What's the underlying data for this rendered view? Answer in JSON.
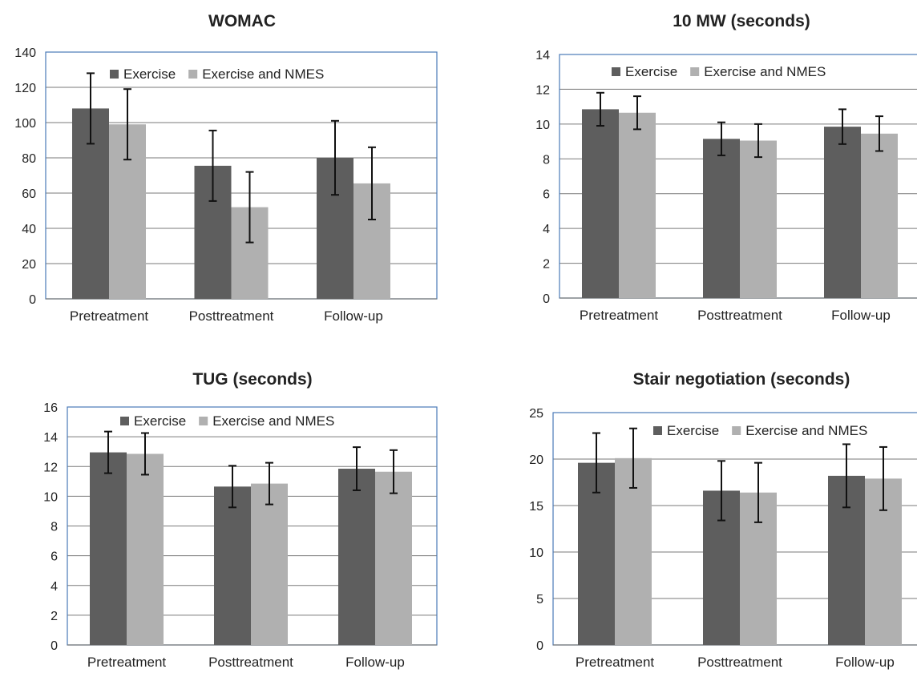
{
  "colors": {
    "exercise": "#5e5e5e",
    "exercise_nmes": "#b0b0b0",
    "frame": "#4a7ab7",
    "grid": "#7a7a7a",
    "error_bar": "#111111"
  },
  "chart_data": [
    {
      "type": "bar",
      "title": "WOMAC",
      "categories": [
        "Pretreatment",
        "Posttreatment",
        "Follow-up"
      ],
      "series": [
        {
          "name": "Exercise",
          "values": [
            108,
            75.5,
            80
          ],
          "error": [
            20,
            20,
            21
          ]
        },
        {
          "name": "Exercise and NMES",
          "values": [
            99,
            52,
            65.5
          ],
          "error": [
            20,
            20,
            20.5
          ]
        }
      ],
      "ylim": [
        0,
        140
      ],
      "yticks": [
        0,
        20,
        40,
        60,
        80,
        100,
        120,
        140
      ],
      "grid": true,
      "legend": "top-center"
    },
    {
      "type": "bar",
      "title": "10 MW (seconds)",
      "categories": [
        "Pretreatment",
        "Posttreatment",
        "Follow-up"
      ],
      "series": [
        {
          "name": "Exercise",
          "values": [
            10.85,
            9.15,
            9.85
          ],
          "error": [
            0.95,
            0.95,
            1.0
          ]
        },
        {
          "name": "Exercise and NMES",
          "values": [
            10.65,
            9.05,
            9.45
          ],
          "error": [
            0.95,
            0.95,
            1.0
          ]
        }
      ],
      "ylim": [
        0,
        14
      ],
      "yticks": [
        0,
        2,
        4,
        6,
        8,
        10,
        12,
        14
      ],
      "grid": true,
      "legend": "top-center"
    },
    {
      "type": "bar",
      "title": "TUG (seconds)",
      "categories": [
        "Pretreatment",
        "Posttreatment",
        "Follow-up"
      ],
      "series": [
        {
          "name": "Exercise",
          "values": [
            12.95,
            10.65,
            11.85
          ],
          "error": [
            1.4,
            1.4,
            1.45
          ]
        },
        {
          "name": "Exercise and NMES",
          "values": [
            12.85,
            10.85,
            11.65
          ],
          "error": [
            1.4,
            1.4,
            1.45
          ]
        }
      ],
      "ylim": [
        0,
        16
      ],
      "yticks": [
        0,
        2,
        4,
        6,
        8,
        10,
        12,
        14,
        16
      ],
      "grid": true,
      "legend": "top-center"
    },
    {
      "type": "bar",
      "title": "Stair negotiation (seconds)",
      "categories": [
        "Pretreatment",
        "Posttreatment",
        "Follow-up"
      ],
      "series": [
        {
          "name": "Exercise",
          "values": [
            19.6,
            16.6,
            18.2
          ],
          "error": [
            3.2,
            3.2,
            3.4
          ]
        },
        {
          "name": "Exercise and NMES",
          "values": [
            20.1,
            16.4,
            17.9
          ],
          "error": [
            3.2,
            3.2,
            3.4
          ]
        }
      ],
      "ylim": [
        0,
        25
      ],
      "yticks": [
        0,
        5,
        10,
        15,
        20,
        25
      ],
      "grid": true,
      "legend": "top-center"
    }
  ]
}
